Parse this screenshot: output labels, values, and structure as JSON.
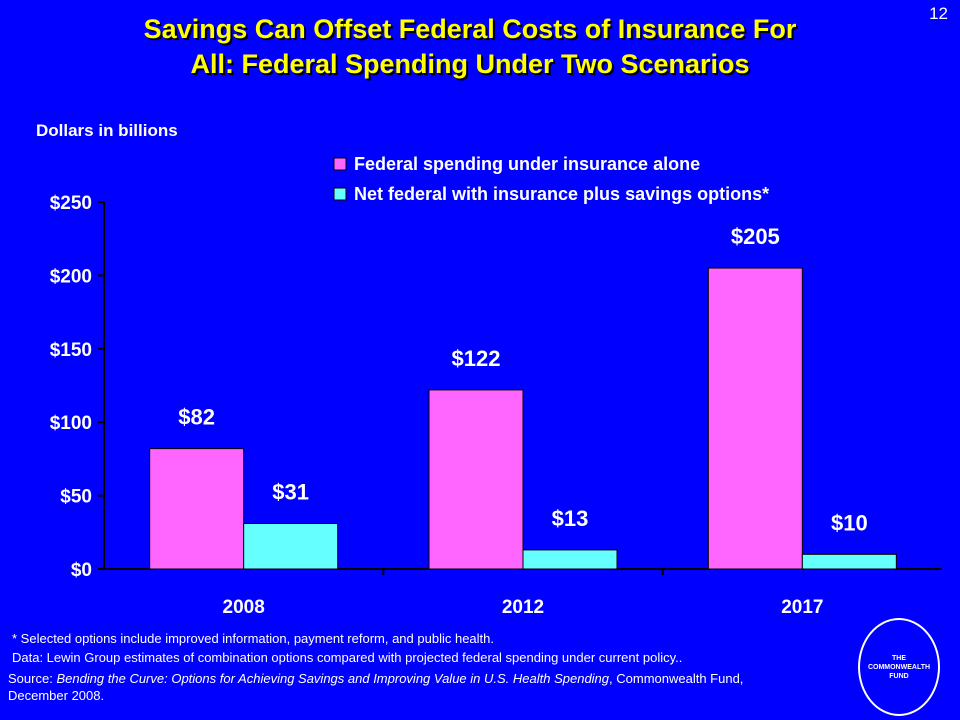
{
  "slide": {
    "number": "12"
  },
  "title_line1": "Savings Can Offset Federal Costs of Insurance For",
  "title_line2": "All: Federal Spending Under Two Scenarios",
  "units_label": "Dollars in billions",
  "colors": {
    "background": "#0000ff",
    "title": "#ffff00",
    "series1": "#ff66ff",
    "series2": "#66ffff"
  },
  "chart_data": {
    "type": "bar",
    "categories": [
      "2008",
      "2012",
      "2017"
    ],
    "series": [
      {
        "name": "Federal spending under insurance alone",
        "values": [
          82,
          122,
          205
        ],
        "labels": [
          "$82",
          "$122",
          "$205"
        ]
      },
      {
        "name": "Net federal with insurance plus savings options*",
        "values": [
          31,
          13,
          10
        ],
        "labels": [
          "$31",
          "$13",
          "$10"
        ]
      }
    ],
    "ylim": [
      0,
      250
    ],
    "yticks": [
      0,
      50,
      100,
      150,
      200,
      250
    ],
    "ytick_labels": [
      "$0",
      "$50",
      "$100",
      "$150",
      "$200",
      "$250"
    ],
    "legend_position": "top-right",
    "grid": false
  },
  "footnotes": {
    "note": "* Selected options include improved information, payment reform, and public health.",
    "data": "Data: Lewin Group estimates of combination options compared with projected federal spending under current policy..",
    "source_prefix": "Source:",
    "source_title": "Bending the Curve: Options for Achieving Savings and Improving Value in U.S. Health Spending",
    "source_suffix": ", Commonwealth Fund, December 2008."
  },
  "logo": {
    "text": "THE COMMONWEALTH FUND"
  }
}
